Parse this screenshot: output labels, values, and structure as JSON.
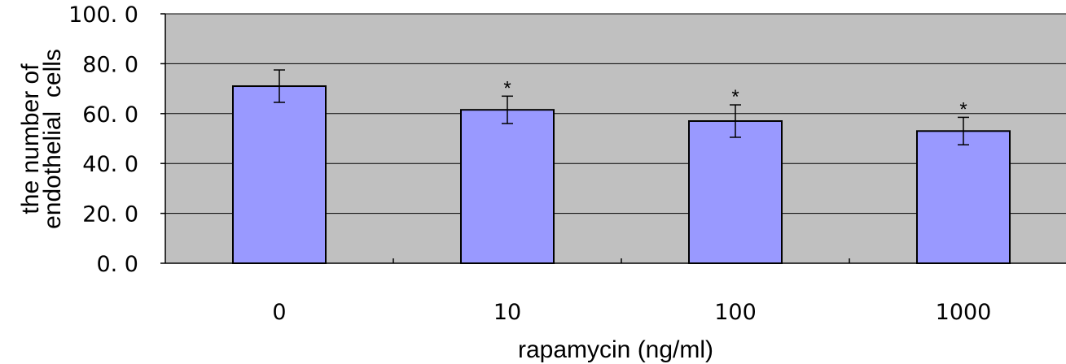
{
  "chart_data": {
    "type": "bar",
    "categories": [
      "0",
      "10",
      "100",
      "1000"
    ],
    "values": [
      71.0,
      61.5,
      57.0,
      53.0
    ],
    "errors": [
      6.5,
      5.5,
      6.5,
      5.5
    ],
    "significance": [
      "",
      "*",
      "*",
      "*"
    ],
    "title": "",
    "xlabel": "rapamycin (ng/ml)",
    "ylabel_lines": [
      "the number of",
      "endothelial  cells"
    ],
    "ylim": [
      0,
      100
    ],
    "yticks": [
      "0. 0",
      "20. 0",
      "40. 0",
      "60. 0",
      "80. 0",
      "100. 0"
    ],
    "grid": true,
    "colors": {
      "bar_fill": "#9999ff",
      "bar_stroke": "#000000",
      "plot_background": "#c0c0c0",
      "gridline": "#000000"
    }
  }
}
